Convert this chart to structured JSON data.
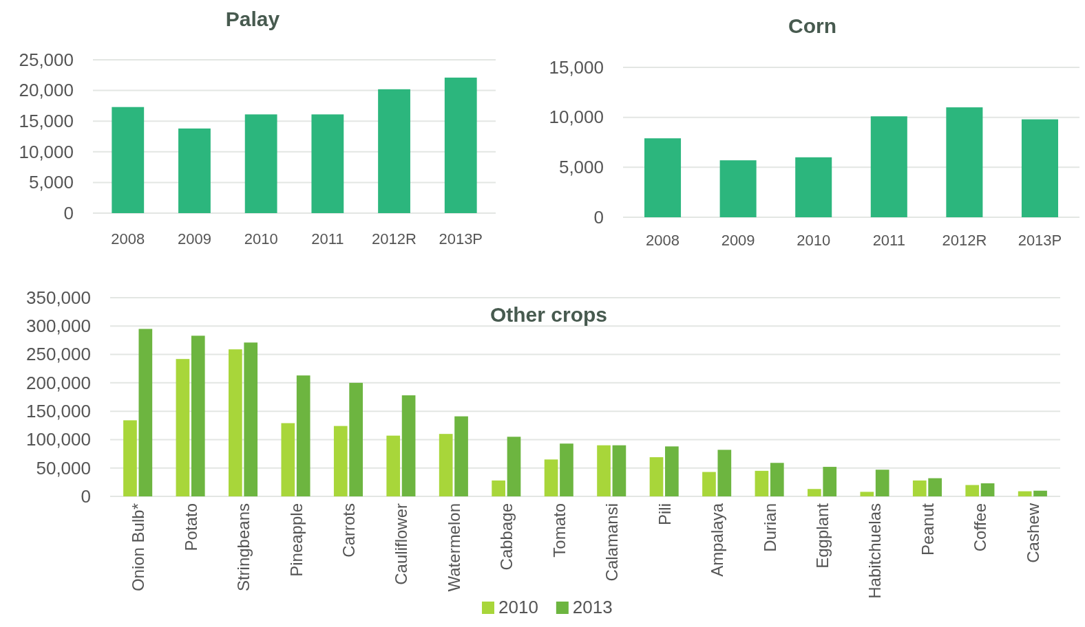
{
  "chart_data": [
    {
      "type": "bar",
      "title": "Palay",
      "categories": [
        "2008",
        "2009",
        "2010",
        "2011",
        "2012R",
        "2013P"
      ],
      "values": [
        17300,
        13800,
        16100,
        16100,
        20200,
        22100
      ],
      "color": "#2cb67d",
      "ylim": [
        0,
        25000
      ],
      "yticks": [
        {
          "value": 0,
          "label": "0"
        },
        {
          "value": 5000,
          "label": "5,000"
        },
        {
          "value": 10000,
          "label": "10,000"
        },
        {
          "value": 15000,
          "label": "15,000"
        },
        {
          "value": 20000,
          "label": "20,000"
        },
        {
          "value": 25000,
          "label": "25,000"
        }
      ],
      "grid": "y"
    },
    {
      "type": "bar",
      "title": "Corn",
      "categories": [
        "2008",
        "2009",
        "2010",
        "2011",
        "2012R",
        "2013P"
      ],
      "values": [
        7900,
        5700,
        6000,
        10100,
        11000,
        9800
      ],
      "color": "#2cb67d",
      "ylim": [
        0,
        15000
      ],
      "yticks": [
        {
          "value": 0,
          "label": "0"
        },
        {
          "value": 5000,
          "label": "5,000"
        },
        {
          "value": 10000,
          "label": "10,000"
        },
        {
          "value": 15000,
          "label": "15,000"
        }
      ],
      "grid": "y"
    },
    {
      "type": "bar",
      "title": "Other crops",
      "categories": [
        "Onion Bulb*",
        "Potato",
        "Stringbeans",
        "Pineapple",
        "Carrots",
        "Cauliflower",
        "Watermelon",
        "Cabbage",
        "Tomato",
        "Calamansi",
        "Pili",
        "Ampalaya",
        "Durian",
        "Eggplant",
        "Habitchuelas",
        "Peanut",
        "Coffee",
        "Cashew"
      ],
      "series": [
        {
          "name": "2010",
          "color": "#a8d63a",
          "values": [
            134000,
            242000,
            259000,
            129000,
            124000,
            107000,
            110000,
            28000,
            65000,
            90000,
            69000,
            43000,
            45000,
            13000,
            8000,
            28000,
            20000,
            9000
          ]
        },
        {
          "name": "2013",
          "color": "#6db540",
          "values": [
            295000,
            283000,
            271000,
            213000,
            200000,
            178000,
            141000,
            105000,
            93000,
            90000,
            88000,
            82000,
            59000,
            52000,
            47000,
            32000,
            23000,
            10000
          ]
        }
      ],
      "ylim": [
        0,
        350000
      ],
      "yticks": [
        {
          "value": 0,
          "label": "0"
        },
        {
          "value": 50000,
          "label": "50,000"
        },
        {
          "value": 100000,
          "label": "100,000"
        },
        {
          "value": 150000,
          "label": "150,000"
        },
        {
          "value": 200000,
          "label": "200,000"
        },
        {
          "value": 250000,
          "label": "250,000"
        },
        {
          "value": 300000,
          "label": "300,000"
        },
        {
          "value": 350000,
          "label": "350,000"
        }
      ],
      "grid": "y",
      "legend": "bottom"
    }
  ]
}
